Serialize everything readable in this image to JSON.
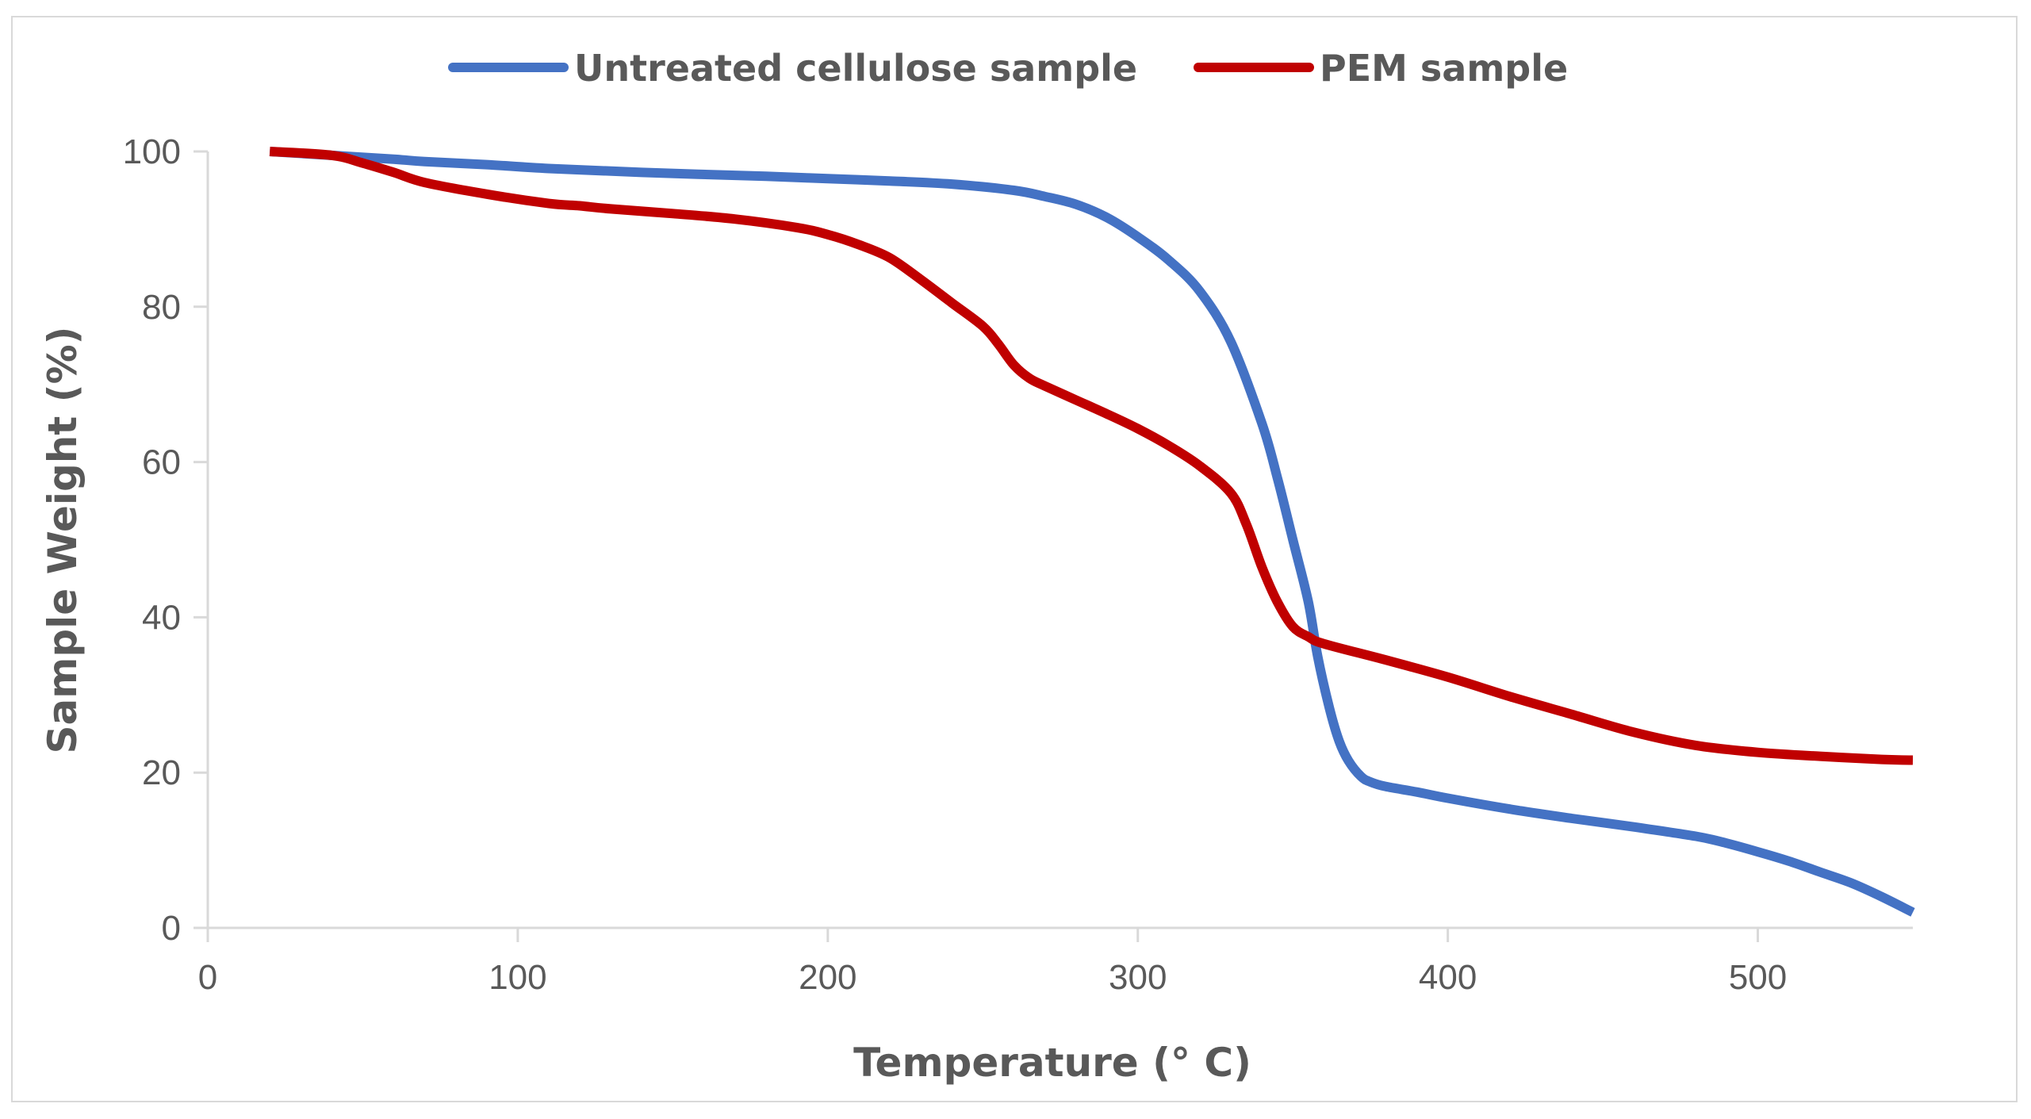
{
  "chart_data": {
    "type": "line",
    "title": "",
    "xlabel": "Temperature (° C)",
    "ylabel": "Sample Weight (%)",
    "xlim": [
      0,
      550
    ],
    "ylim": [
      0,
      100
    ],
    "x_ticks": [
      "0",
      "100",
      "200",
      "300",
      "400",
      "500"
    ],
    "y_ticks": [
      "0",
      "20",
      "40",
      "60",
      "80",
      "100"
    ],
    "legend_position": "top-center",
    "grid": false,
    "series": [
      {
        "name": "Untreated cellulose sample",
        "color": "#4472C4",
        "x": [
          20,
          40,
          60,
          70,
          90,
          110,
          140,
          180,
          200,
          220,
          240,
          260,
          270,
          280,
          290,
          300,
          310,
          320,
          330,
          340,
          345,
          350,
          355,
          358,
          362,
          365,
          368,
          372,
          375,
          380,
          390,
          400,
          420,
          440,
          460,
          480,
          490,
          500,
          510,
          520,
          530,
          540,
          550
        ],
        "y": [
          100,
          99.5,
          99,
          98.7,
          98.3,
          97.8,
          97.3,
          96.8,
          96.5,
          96.2,
          95.8,
          95,
          94.2,
          93.2,
          91.5,
          89,
          86,
          82,
          75.5,
          65,
          58,
          50,
          42,
          35,
          28,
          24,
          21.5,
          19.5,
          18.8,
          18.2,
          17.5,
          16.7,
          15.3,
          14.1,
          13,
          11.8,
          10.9,
          9.8,
          8.6,
          7.2,
          5.8,
          4,
          2
        ]
      },
      {
        "name": "PEM sample",
        "color": "#C00000",
        "x": [
          20,
          40,
          50,
          60,
          70,
          90,
          110,
          120,
          130,
          150,
          170,
          190,
          200,
          210,
          220,
          230,
          240,
          250,
          255,
          260,
          265,
          270,
          280,
          290,
          300,
          310,
          320,
          330,
          335,
          340,
          345,
          350,
          355,
          360,
          380,
          400,
          420,
          440,
          460,
          480,
          500,
          520,
          540,
          550
        ],
        "y": [
          100,
          99.5,
          98.5,
          97.3,
          96,
          94.5,
          93.3,
          93,
          92.6,
          92,
          91.3,
          90.2,
          89.3,
          88,
          86.3,
          83.5,
          80.5,
          77.5,
          75.2,
          72.5,
          70.8,
          69.8,
          68,
          66.2,
          64.3,
          62.1,
          59.5,
          56,
          52,
          46.5,
          42,
          38.8,
          37.5,
          36.6,
          34.5,
          32.3,
          29.8,
          27.5,
          25.2,
          23.5,
          22.6,
          22.1,
          21.7,
          21.6
        ]
      }
    ]
  }
}
